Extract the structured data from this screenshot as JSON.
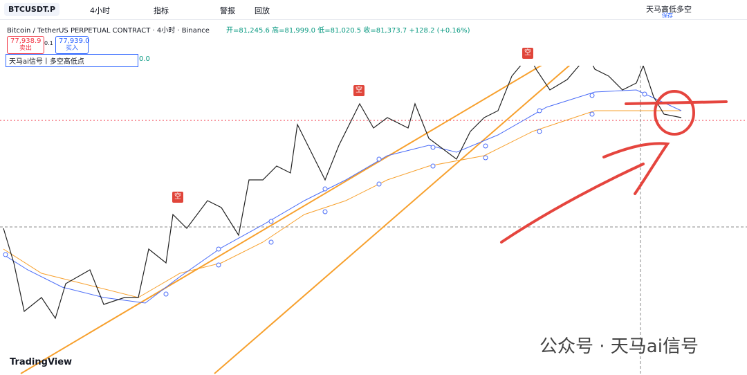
{
  "toolbar": {
    "symbol": "BTCUSDT.P",
    "interval": "4小时",
    "indicators": "指标",
    "alert": "警报",
    "replay": "回放",
    "layout_name": "天马高低多空",
    "save": "保存"
  },
  "legend": {
    "title": "Bitcoin / TetherUS PERPETUAL CONTRACT · 4小时 · Binance",
    "open": "开=81,245.6",
    "high": "高=81,999.0",
    "low": "低=81,020.5",
    "close": "收=81,373.7",
    "change": "+128.2 (+0.16%)"
  },
  "trade": {
    "sell_price": "77,938.9",
    "sell": "卖出",
    "spread": "0.1",
    "buy_price": "77,939.0",
    "buy": "买入"
  },
  "indicator": {
    "name": "天马ai信号丨多空高低点",
    "value": "0.0"
  },
  "signals": [
    "空",
    "空",
    "空"
  ],
  "footer": {
    "logo": "TradingView",
    "watermark": "公众号 · 天马ai信号"
  }
}
